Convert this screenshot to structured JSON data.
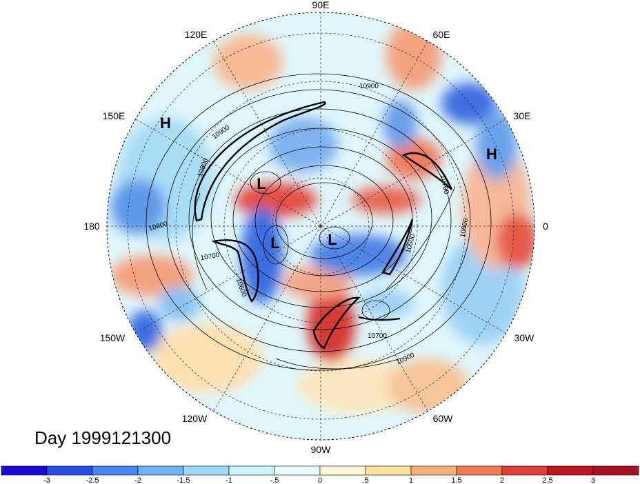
{
  "map": {
    "projection": "polar-stereographic-north",
    "date_label": "Day 1999121300",
    "longitude_labels": [
      {
        "name": "lon-label-90e",
        "text": "90E"
      },
      {
        "name": "lon-label-60e",
        "text": "60E"
      },
      {
        "name": "lon-label-30e",
        "text": "30E"
      },
      {
        "name": "lon-label-0",
        "text": "0"
      },
      {
        "name": "lon-label-30w",
        "text": "30W"
      },
      {
        "name": "lon-label-60w",
        "text": "60W"
      },
      {
        "name": "lon-label-90w",
        "text": "90W"
      },
      {
        "name": "lon-label-120w",
        "text": "120W"
      },
      {
        "name": "lon-label-150w",
        "text": "150W"
      },
      {
        "name": "lon-label-180",
        "text": "180"
      },
      {
        "name": "lon-label-150e",
        "text": "150E"
      },
      {
        "name": "lon-label-120e",
        "text": "120E"
      }
    ],
    "pressure_centers": [
      {
        "name": "high-center-label",
        "text": "H"
      },
      {
        "name": "high-center-label",
        "text": "H"
      },
      {
        "name": "low-center-label",
        "text": "L"
      },
      {
        "name": "low-center-label",
        "text": "L"
      },
      {
        "name": "low-center-label",
        "text": "L"
      }
    ],
    "contour_labels": [
      "10900",
      "10900",
      "10800",
      "10900",
      "10700",
      "10600",
      "10700",
      "10900",
      "10700",
      "10500",
      "10600"
    ],
    "colors": {
      "strong_negative": "#1a1acc",
      "negative": "#5a9ef0",
      "weak_negative": "#bfefff",
      "weak_positive": "#fde7b8",
      "positive": "#f59a6e",
      "strong_positive": "#c0141e"
    }
  },
  "colorbar": {
    "colors": [
      "#1a0ad6",
      "#2a4ee8",
      "#4a86f0",
      "#6fb2f6",
      "#9fd8fb",
      "#c9f3ff",
      "#eafcff",
      "#fff7d8",
      "#fde0a3",
      "#f8b07a",
      "#f07a52",
      "#e0403a",
      "#c0141e",
      "#a8101e"
    ],
    "tick_labels": [
      "-3",
      "-2.5",
      "-2",
      "-1.5",
      "-1",
      "-.5",
      "0",
      ".5",
      "1",
      "1.5",
      "2",
      "2.5",
      "3"
    ]
  }
}
